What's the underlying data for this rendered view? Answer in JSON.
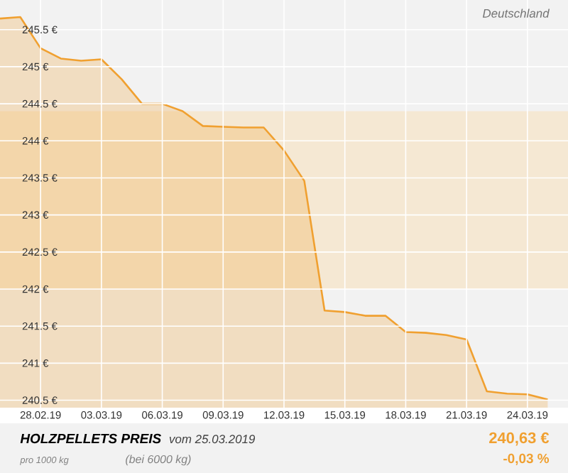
{
  "chart_data": {
    "type": "area",
    "title": "HOLZPELLETS PREIS",
    "annotations": [
      "Deutschland",
      "vom 25.03.2019",
      "pro 1000 kg",
      "(bei 6000 kg)",
      "240,63 €",
      "-0,03 %"
    ],
    "x": [
      "2019-02-26",
      "2019-02-27",
      "2019-02-28",
      "2019-03-01",
      "2019-03-02",
      "2019-03-03",
      "2019-03-04",
      "2019-03-05",
      "2019-03-06",
      "2019-03-07",
      "2019-03-08",
      "2019-03-09",
      "2019-03-10",
      "2019-03-11",
      "2019-03-12",
      "2019-03-13",
      "2019-03-14",
      "2019-03-15",
      "2019-03-16",
      "2019-03-17",
      "2019-03-18",
      "2019-03-19",
      "2019-03-20",
      "2019-03-21",
      "2019-03-22",
      "2019-03-23",
      "2019-03-24",
      "2019-03-25"
    ],
    "series": [
      {
        "color": "#f0a030",
        "values": [
          245.65,
          245.67,
          245.25,
          245.11,
          245.08,
          245.1,
          244.83,
          244.5,
          244.5,
          244.4,
          244.2,
          244.19,
          244.18,
          244.18,
          243.87,
          243.46,
          241.71,
          241.69,
          241.64,
          241.64,
          241.42,
          241.41,
          241.38,
          241.32,
          240.62,
          240.59,
          240.58,
          240.51
        ]
      }
    ],
    "xlim": [
      "2019-02-26",
      "2019-03-26"
    ],
    "ylim": [
      240.4,
      245.9
    ],
    "xticks": [
      {
        "value": "2019-02-28",
        "label": "28.02.19"
      },
      {
        "value": "2019-03-03",
        "label": "03.03.19"
      },
      {
        "value": "2019-03-06",
        "label": "06.03.19"
      },
      {
        "value": "2019-03-09",
        "label": "09.03.19"
      },
      {
        "value": "2019-03-12",
        "label": "12.03.19"
      },
      {
        "value": "2019-03-15",
        "label": "15.03.19"
      },
      {
        "value": "2019-03-18",
        "label": "18.03.19"
      },
      {
        "value": "2019-03-21",
        "label": "21.03.19"
      },
      {
        "value": "2019-03-24",
        "label": "24.03.19"
      }
    ],
    "yticks": [
      {
        "value": 240.5,
        "label": "240.5 €"
      },
      {
        "value": 241,
        "label": "241 €"
      },
      {
        "value": 241.5,
        "label": "241.5 €"
      },
      {
        "value": 242,
        "label": "242 €"
      },
      {
        "value": 242.5,
        "label": "242.5 €"
      },
      {
        "value": 243,
        "label": "243 €"
      },
      {
        "value": 243.5,
        "label": "243.5 €"
      },
      {
        "value": 244,
        "label": "244 €"
      },
      {
        "value": 244.5,
        "label": "244.5 €"
      },
      {
        "value": 245,
        "label": "245 €"
      },
      {
        "value": 245.5,
        "label": "245.5 €"
      }
    ],
    "bands": [
      {
        "axis": "y",
        "from": 242,
        "to": 244.4,
        "color": "#f5e8d3"
      }
    ],
    "grid": true,
    "marker": "none",
    "line_style": "solid"
  }
}
